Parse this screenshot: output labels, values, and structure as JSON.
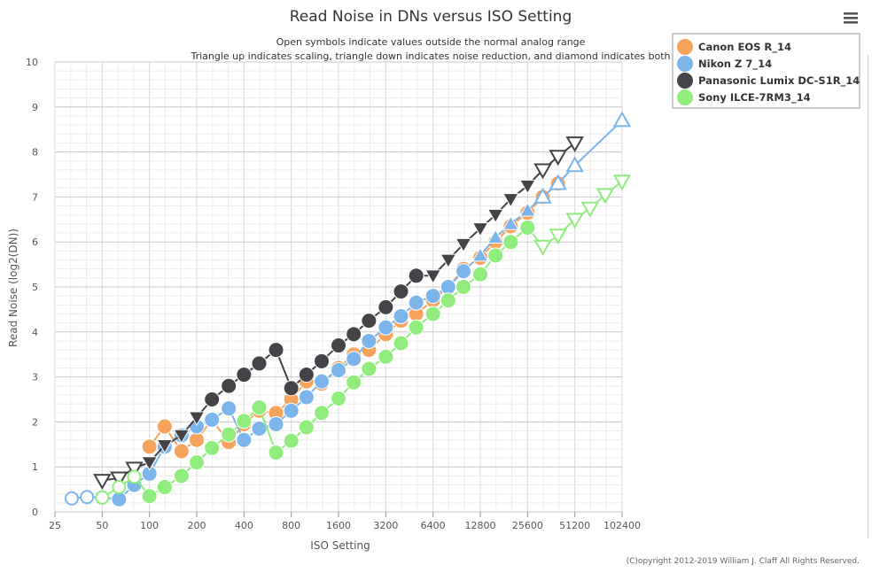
{
  "chart_data": {
    "type": "line",
    "title": "Read Noise in DNs versus ISO Setting",
    "subtitle_lines": [
      "Open symbols indicate values outside the normal analog range",
      "Triangle up indicates scaling, triangle down indicates noise reduction, and diamond indicates both"
    ],
    "xlabel": "ISO Setting",
    "ylabel": "Read Noise (log2(DN))",
    "x_scale": "log2",
    "xlim": [
      25,
      102400
    ],
    "ylim": [
      0,
      10
    ],
    "x_ticks": [
      "25",
      "50",
      "100",
      "200",
      "400",
      "800",
      "1600",
      "3200",
      "6400",
      "12800",
      "25600",
      "51200",
      "102400"
    ],
    "y_ticks": [
      "0",
      "1",
      "2",
      "3",
      "4",
      "5",
      "6",
      "7",
      "8",
      "9",
      "10"
    ],
    "grid": true,
    "legend_position": "top-right",
    "series": [
      {
        "name": "Canon EOS R_14",
        "color": "#f7a35c",
        "points": [
          {
            "x": 100,
            "y": 1.45,
            "m": "circle"
          },
          {
            "x": 125,
            "y": 1.9,
            "m": "circle"
          },
          {
            "x": 160,
            "y": 1.35,
            "m": "circle"
          },
          {
            "x": 200,
            "y": 1.6,
            "m": "circle"
          },
          {
            "x": 250,
            "y": 2.05,
            "m": "circle"
          },
          {
            "x": 320,
            "y": 1.55,
            "m": "circle"
          },
          {
            "x": 400,
            "y": 1.95,
            "m": "circle"
          },
          {
            "x": 500,
            "y": 2.25,
            "m": "circle"
          },
          {
            "x": 640,
            "y": 2.2,
            "m": "circle"
          },
          {
            "x": 800,
            "y": 2.5,
            "m": "circle"
          },
          {
            "x": 1000,
            "y": 2.9,
            "m": "circle"
          },
          {
            "x": 1250,
            "y": 2.85,
            "m": "circle"
          },
          {
            "x": 1600,
            "y": 3.2,
            "m": "circle"
          },
          {
            "x": 2000,
            "y": 3.5,
            "m": "circle"
          },
          {
            "x": 2500,
            "y": 3.6,
            "m": "circle"
          },
          {
            "x": 3200,
            "y": 3.95,
            "m": "circle"
          },
          {
            "x": 4000,
            "y": 4.25,
            "m": "circle"
          },
          {
            "x": 5000,
            "y": 4.4,
            "m": "circle"
          },
          {
            "x": 6400,
            "y": 4.7,
            "m": "circle"
          },
          {
            "x": 8000,
            "y": 5.0,
            "m": "circle"
          },
          {
            "x": 10000,
            "y": 5.4,
            "m": "circle"
          },
          {
            "x": 12800,
            "y": 5.65,
            "m": "circle"
          },
          {
            "x": 16000,
            "y": 6.0,
            "m": "circle"
          },
          {
            "x": 20000,
            "y": 6.35,
            "m": "circle"
          },
          {
            "x": 25600,
            "y": 6.65,
            "m": "circle"
          },
          {
            "x": 32000,
            "y": 7.0,
            "m": "circle"
          },
          {
            "x": 40000,
            "y": 7.3,
            "m": "circle"
          }
        ]
      },
      {
        "name": "Nikon Z 7_14",
        "color": "#7cb5ec",
        "points": [
          {
            "x": 32,
            "y": 0.3,
            "m": "open-circle"
          },
          {
            "x": 40,
            "y": 0.33,
            "m": "open-circle"
          },
          {
            "x": 50,
            "y": 0.32,
            "m": "open-circle"
          },
          {
            "x": 64,
            "y": 0.28,
            "m": "circle"
          },
          {
            "x": 80,
            "y": 0.6,
            "m": "circle"
          },
          {
            "x": 100,
            "y": 0.85,
            "m": "circle"
          },
          {
            "x": 125,
            "y": 1.45,
            "m": "circle"
          },
          {
            "x": 160,
            "y": 1.7,
            "m": "circle"
          },
          {
            "x": 200,
            "y": 1.9,
            "m": "circle"
          },
          {
            "x": 250,
            "y": 2.05,
            "m": "circle"
          },
          {
            "x": 320,
            "y": 2.3,
            "m": "circle"
          },
          {
            "x": 400,
            "y": 1.6,
            "m": "circle"
          },
          {
            "x": 500,
            "y": 1.85,
            "m": "circle"
          },
          {
            "x": 640,
            "y": 1.95,
            "m": "circle"
          },
          {
            "x": 800,
            "y": 2.25,
            "m": "circle"
          },
          {
            "x": 1000,
            "y": 2.55,
            "m": "circle"
          },
          {
            "x": 1250,
            "y": 2.9,
            "m": "circle"
          },
          {
            "x": 1600,
            "y": 3.15,
            "m": "circle"
          },
          {
            "x": 2000,
            "y": 3.4,
            "m": "circle"
          },
          {
            "x": 2500,
            "y": 3.8,
            "m": "circle"
          },
          {
            "x": 3200,
            "y": 4.1,
            "m": "circle"
          },
          {
            "x": 4000,
            "y": 4.35,
            "m": "circle"
          },
          {
            "x": 5000,
            "y": 4.65,
            "m": "circle"
          },
          {
            "x": 6400,
            "y": 4.8,
            "m": "circle"
          },
          {
            "x": 8000,
            "y": 5.0,
            "m": "circle"
          },
          {
            "x": 10000,
            "y": 5.35,
            "m": "circle"
          },
          {
            "x": 12800,
            "y": 5.7,
            "m": "triangle-up"
          },
          {
            "x": 16000,
            "y": 6.1,
            "m": "triangle-up"
          },
          {
            "x": 20000,
            "y": 6.4,
            "m": "triangle-up"
          },
          {
            "x": 25600,
            "y": 6.7,
            "m": "triangle-up"
          },
          {
            "x": 32000,
            "y": 7.0,
            "m": "open-triangle-up"
          },
          {
            "x": 40000,
            "y": 7.3,
            "m": "open-triangle-up"
          },
          {
            "x": 51200,
            "y": 7.7,
            "m": "open-triangle-up"
          },
          {
            "x": 102400,
            "y": 8.7,
            "m": "open-triangle-up"
          }
        ]
      },
      {
        "name": "Panasonic Lumix DC-S1R_14",
        "color": "#434348",
        "points": [
          {
            "x": 50,
            "y": 0.7,
            "m": "open-triangle-down"
          },
          {
            "x": 64,
            "y": 0.75,
            "m": "open-triangle-down"
          },
          {
            "x": 80,
            "y": 0.97,
            "m": "open-triangle-down"
          },
          {
            "x": 100,
            "y": 1.1,
            "m": "triangle-down"
          },
          {
            "x": 125,
            "y": 1.48,
            "m": "triangle-down"
          },
          {
            "x": 160,
            "y": 1.7,
            "m": "triangle-down"
          },
          {
            "x": 200,
            "y": 2.1,
            "m": "triangle-down"
          },
          {
            "x": 250,
            "y": 2.5,
            "m": "circle"
          },
          {
            "x": 320,
            "y": 2.8,
            "m": "circle"
          },
          {
            "x": 400,
            "y": 3.05,
            "m": "circle"
          },
          {
            "x": 500,
            "y": 3.3,
            "m": "circle"
          },
          {
            "x": 640,
            "y": 3.6,
            "m": "circle"
          },
          {
            "x": 800,
            "y": 2.75,
            "m": "circle"
          },
          {
            "x": 1000,
            "y": 3.05,
            "m": "circle"
          },
          {
            "x": 1250,
            "y": 3.35,
            "m": "circle"
          },
          {
            "x": 1600,
            "y": 3.7,
            "m": "circle"
          },
          {
            "x": 2000,
            "y": 3.95,
            "m": "circle"
          },
          {
            "x": 2500,
            "y": 4.25,
            "m": "circle"
          },
          {
            "x": 3200,
            "y": 4.55,
            "m": "circle"
          },
          {
            "x": 4000,
            "y": 4.9,
            "m": "circle"
          },
          {
            "x": 5000,
            "y": 5.25,
            "m": "circle"
          },
          {
            "x": 6400,
            "y": 5.25,
            "m": "triangle-down"
          },
          {
            "x": 8000,
            "y": 5.6,
            "m": "triangle-down"
          },
          {
            "x": 10000,
            "y": 5.95,
            "m": "triangle-down"
          },
          {
            "x": 12800,
            "y": 6.3,
            "m": "triangle-down"
          },
          {
            "x": 16000,
            "y": 6.6,
            "m": "triangle-down"
          },
          {
            "x": 20000,
            "y": 6.95,
            "m": "triangle-down"
          },
          {
            "x": 25600,
            "y": 7.25,
            "m": "triangle-down"
          },
          {
            "x": 32000,
            "y": 7.6,
            "m": "open-triangle-down"
          },
          {
            "x": 40000,
            "y": 7.9,
            "m": "open-triangle-down"
          },
          {
            "x": 51200,
            "y": 8.2,
            "m": "open-triangle-down"
          }
        ]
      },
      {
        "name": "Sony ILCE-7RM3_14",
        "color": "#90ed7d",
        "points": [
          {
            "x": 50,
            "y": 0.32,
            "m": "open-circle"
          },
          {
            "x": 64,
            "y": 0.55,
            "m": "open-circle"
          },
          {
            "x": 80,
            "y": 0.78,
            "m": "open-circle"
          },
          {
            "x": 100,
            "y": 0.35,
            "m": "circle"
          },
          {
            "x": 125,
            "y": 0.55,
            "m": "circle"
          },
          {
            "x": 160,
            "y": 0.8,
            "m": "circle"
          },
          {
            "x": 200,
            "y": 1.1,
            "m": "circle"
          },
          {
            "x": 250,
            "y": 1.42,
            "m": "circle"
          },
          {
            "x": 320,
            "y": 1.72,
            "m": "circle"
          },
          {
            "x": 400,
            "y": 2.02,
            "m": "circle"
          },
          {
            "x": 500,
            "y": 2.32,
            "m": "circle"
          },
          {
            "x": 640,
            "y": 1.32,
            "m": "circle"
          },
          {
            "x": 800,
            "y": 1.58,
            "m": "circle"
          },
          {
            "x": 1000,
            "y": 1.88,
            "m": "circle"
          },
          {
            "x": 1250,
            "y": 2.2,
            "m": "circle"
          },
          {
            "x": 1600,
            "y": 2.52,
            "m": "circle"
          },
          {
            "x": 2000,
            "y": 2.88,
            "m": "circle"
          },
          {
            "x": 2500,
            "y": 3.18,
            "m": "circle"
          },
          {
            "x": 3200,
            "y": 3.45,
            "m": "circle"
          },
          {
            "x": 4000,
            "y": 3.75,
            "m": "circle"
          },
          {
            "x": 5000,
            "y": 4.1,
            "m": "circle"
          },
          {
            "x": 6400,
            "y": 4.4,
            "m": "circle"
          },
          {
            "x": 8000,
            "y": 4.7,
            "m": "circle"
          },
          {
            "x": 10000,
            "y": 5.0,
            "m": "circle"
          },
          {
            "x": 12800,
            "y": 5.28,
            "m": "circle"
          },
          {
            "x": 16000,
            "y": 5.7,
            "m": "circle"
          },
          {
            "x": 20000,
            "y": 6.0,
            "m": "circle"
          },
          {
            "x": 25600,
            "y": 6.32,
            "m": "circle"
          },
          {
            "x": 32000,
            "y": 5.9,
            "m": "open-triangle-down"
          },
          {
            "x": 40000,
            "y": 6.15,
            "m": "open-triangle-down"
          },
          {
            "x": 51200,
            "y": 6.5,
            "m": "open-triangle-down"
          },
          {
            "x": 64000,
            "y": 6.75,
            "m": "open-triangle-down"
          },
          {
            "x": 80000,
            "y": 7.05,
            "m": "open-triangle-down"
          },
          {
            "x": 102400,
            "y": 7.35,
            "m": "open-triangle-down"
          }
        ]
      }
    ]
  },
  "credit": "(C)opyright 2012-2019 William J. Claff All Rights Reserved.",
  "menu_icon": "hamburger-menu-icon"
}
